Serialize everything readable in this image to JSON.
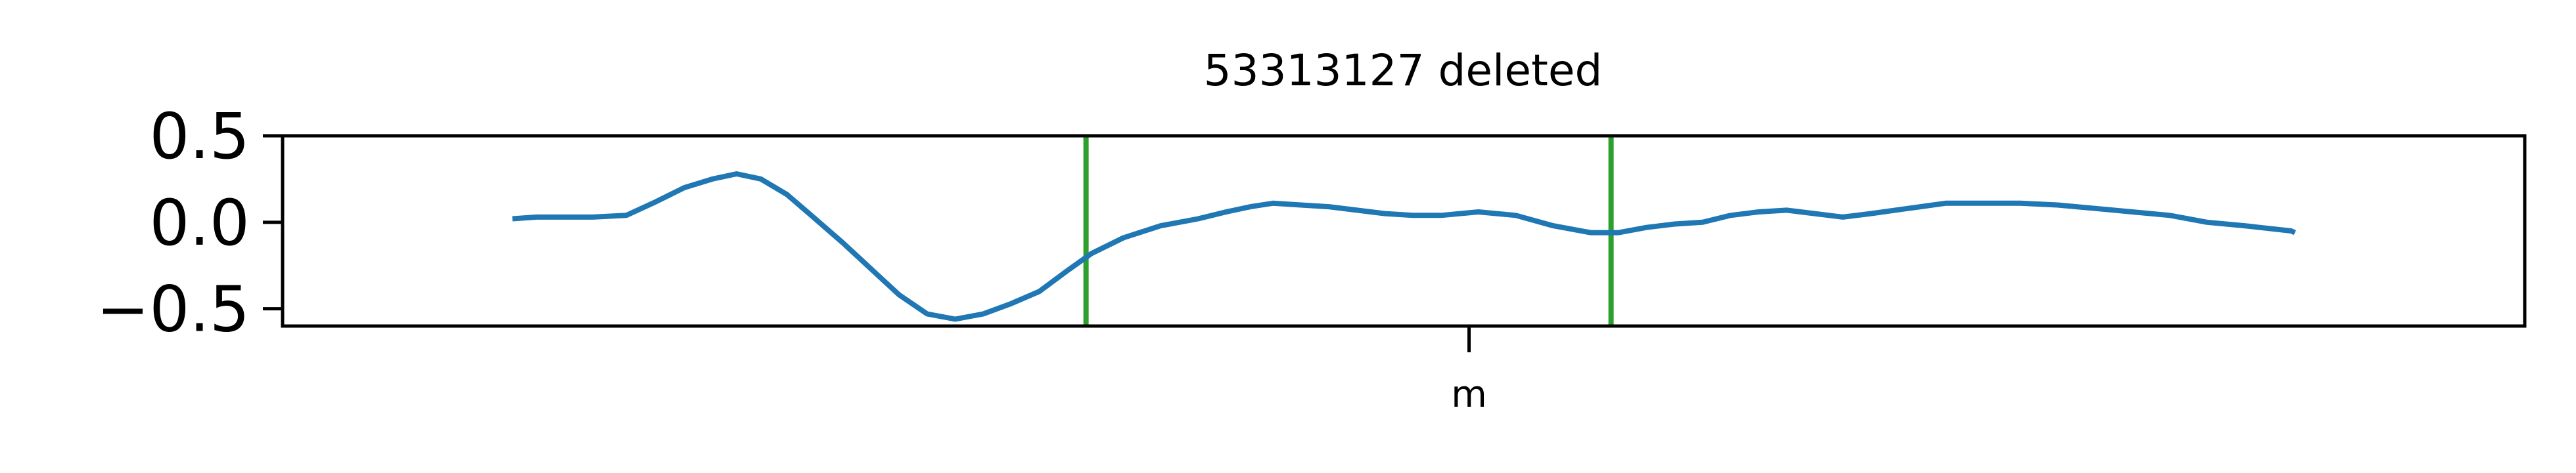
{
  "chart_data": {
    "type": "line",
    "title": "53313127 deleted",
    "xlabel": "",
    "ylabel": "",
    "xlim": [
      -0.1,
      1.1
    ],
    "ylim": [
      -0.6,
      0.5
    ],
    "x_ticks": [
      {
        "value": 0.535,
        "label": "m"
      }
    ],
    "y_ticks": [
      {
        "value": 0.5,
        "label": "0.5"
      },
      {
        "value": 0.0,
        "label": "0.0"
      },
      {
        "value": -0.5,
        "label": "−0.5"
      }
    ],
    "grid": false,
    "series": [
      {
        "color": "#1f77b4",
        "x": [
          0.023,
          0.036,
          0.05,
          0.066,
          0.084,
          0.1,
          0.115,
          0.13,
          0.143,
          0.156,
          0.17,
          0.184,
          0.2,
          0.215,
          0.23,
          0.245,
          0.26,
          0.275,
          0.29,
          0.305,
          0.32,
          0.333,
          0.35,
          0.37,
          0.39,
          0.405,
          0.418,
          0.43,
          0.445,
          0.46,
          0.475,
          0.49,
          0.505,
          0.52,
          0.54,
          0.56,
          0.58,
          0.6,
          0.615,
          0.63,
          0.645,
          0.66,
          0.675,
          0.69,
          0.705,
          0.72,
          0.735,
          0.75,
          0.77,
          0.79,
          0.81,
          0.83,
          0.85,
          0.87,
          0.89,
          0.91,
          0.93,
          0.95,
          0.975,
          0.977
        ],
        "y": [
          0.02,
          0.03,
          0.03,
          0.03,
          0.04,
          0.12,
          0.2,
          0.25,
          0.28,
          0.25,
          0.16,
          0.03,
          -0.12,
          -0.27,
          -0.42,
          -0.53,
          -0.56,
          -0.53,
          -0.47,
          -0.4,
          -0.28,
          -0.18,
          -0.09,
          -0.02,
          0.02,
          0.06,
          0.09,
          0.11,
          0.1,
          0.09,
          0.07,
          0.05,
          0.04,
          0.04,
          0.06,
          0.04,
          -0.02,
          -0.06,
          -0.06,
          -0.03,
          -0.01,
          0.0,
          0.04,
          0.06,
          0.07,
          0.05,
          0.03,
          0.05,
          0.08,
          0.11,
          0.11,
          0.11,
          0.1,
          0.08,
          0.06,
          0.04,
          0.0,
          -0.02,
          -0.05,
          -0.06
        ]
      }
    ],
    "vertical_lines": {
      "color": "#2ca02c",
      "x": [
        0.33,
        0.611
      ]
    }
  }
}
